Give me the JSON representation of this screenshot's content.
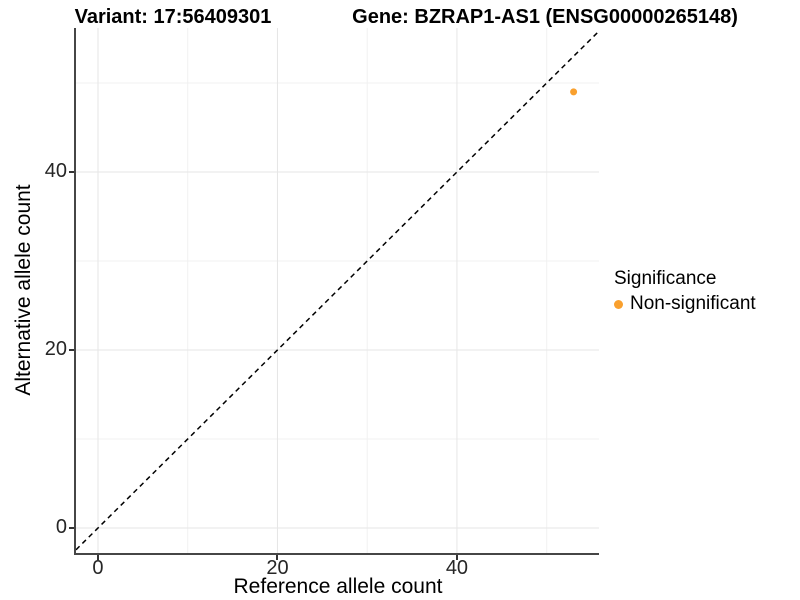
{
  "titles": {
    "variant": "Variant: 17:56409301",
    "gene": "Gene: BZRAP1-AS1 (ENSG00000265148)"
  },
  "axes": {
    "x": {
      "label": "Reference allele count",
      "tick_labels": [
        "0",
        "20",
        "40"
      ]
    },
    "y": {
      "label": "Alternative allele count",
      "tick_labels": [
        "0",
        "20",
        "40"
      ]
    }
  },
  "legend": {
    "title": "Significance",
    "items": [
      {
        "label": "Non-significant",
        "color": "#F9A02E",
        "icon": "legend-point-icon",
        "shape": "circle"
      }
    ]
  },
  "colors": {
    "point": "#F9A02E",
    "axis_line": "#464646",
    "tick": "#333333",
    "grid_major": "#E6E6E6",
    "grid_minor": "#F1F1F1",
    "identity_line": "#000000",
    "background": "#FFFFFF"
  },
  "chart_data": {
    "type": "scatter",
    "title": "Variant: 17:56409301 | Gene: BZRAP1-AS1 (ENSG00000265148)",
    "xlabel": "Reference allele count",
    "ylabel": "Alternative allele count",
    "xlim": [
      -2.45,
      55.83
    ],
    "ylim": [
      -2.81,
      56.18
    ],
    "x_major_ticks": [
      0,
      20,
      40
    ],
    "x_minor_ticks": [
      10,
      30,
      50
    ],
    "y_major_ticks": [
      0,
      20,
      40
    ],
    "y_minor_ticks": [
      10,
      30,
      50
    ],
    "grid": "on",
    "legend_position": "right",
    "series": [
      {
        "name": "Non-significant",
        "color": "#F9A02E",
        "points": [
          {
            "x": 53,
            "y": 49
          }
        ]
      }
    ],
    "reference_line": {
      "kind": "identity",
      "equation": "y = x",
      "style": "dashed",
      "color": "#000000"
    }
  }
}
